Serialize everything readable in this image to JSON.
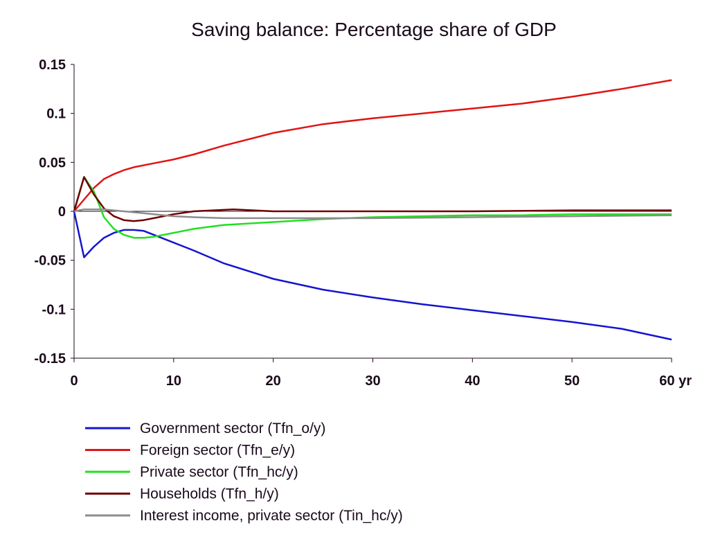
{
  "chart_data": {
    "type": "line",
    "title": "Saving balance: Percentage share of GDP",
    "xlabel": "",
    "ylabel": "",
    "xlim": [
      0,
      60
    ],
    "ylim": [
      -0.15,
      0.15
    ],
    "x_ticks": [
      0,
      10,
      20,
      30,
      40,
      50,
      60
    ],
    "x_tick_labels": [
      "0",
      "10",
      "20",
      "30",
      "40",
      "50",
      "60 yr"
    ],
    "y_ticks": [
      0.15,
      0.1,
      0.05,
      0,
      -0.05,
      -0.1,
      -0.15
    ],
    "y_tick_labels": [
      "0.15",
      "0.1",
      "0.05",
      "0",
      "-0.05",
      "-0.1",
      "-0.15"
    ],
    "grid": false,
    "zero_line": true,
    "legend_position": "bottom",
    "series": [
      {
        "name": "Government sector (Tfn_o/y)",
        "color": "#1414d2",
        "x": [
          0,
          1,
          2,
          3,
          4,
          5,
          6,
          7,
          8,
          10,
          12,
          15,
          20,
          25,
          30,
          35,
          40,
          45,
          50,
          55,
          60
        ],
        "y": [
          0,
          -0.047,
          -0.036,
          -0.027,
          -0.022,
          -0.019,
          -0.019,
          -0.02,
          -0.024,
          -0.032,
          -0.04,
          -0.053,
          -0.069,
          -0.08,
          -0.088,
          -0.095,
          -0.101,
          -0.107,
          -0.113,
          -0.12,
          -0.131
        ]
      },
      {
        "name": "Foreign sector (Tfn_e/y)",
        "color": "#e01414",
        "x": [
          0,
          1,
          2,
          3,
          4,
          5,
          6,
          8,
          10,
          12,
          15,
          20,
          25,
          30,
          35,
          40,
          45,
          50,
          55,
          60
        ],
        "y": [
          0,
          0.012,
          0.024,
          0.033,
          0.038,
          0.042,
          0.045,
          0.049,
          0.053,
          0.058,
          0.067,
          0.08,
          0.089,
          0.095,
          0.1,
          0.105,
          0.11,
          0.117,
          0.125,
          0.134
        ]
      },
      {
        "name": "Private sector (Tfn_hc/y)",
        "color": "#20e020",
        "x": [
          0,
          1,
          2,
          3,
          4,
          5,
          6,
          7,
          8,
          10,
          12,
          15,
          20,
          25,
          30,
          35,
          40,
          45,
          50,
          55,
          60
        ],
        "y": [
          0,
          0.035,
          0.02,
          -0.006,
          -0.018,
          -0.024,
          -0.027,
          -0.027,
          -0.026,
          -0.022,
          -0.018,
          -0.014,
          -0.011,
          -0.008,
          -0.006,
          -0.005,
          -0.004,
          -0.004,
          -0.003,
          -0.003,
          -0.003
        ]
      },
      {
        "name": "Households (Tfn_h/y)",
        "color": "#6e0000",
        "x": [
          0,
          1,
          2,
          3,
          4,
          5,
          6,
          7,
          8,
          10,
          12,
          14,
          16,
          18,
          20,
          25,
          30,
          40,
          50,
          60
        ],
        "y": [
          0,
          0.035,
          0.017,
          0.003,
          -0.005,
          -0.009,
          -0.01,
          -0.009,
          -0.007,
          -0.003,
          0.0,
          0.001,
          0.002,
          0.001,
          0.0,
          0.0,
          0.0,
          0.0,
          0.001,
          0.001
        ]
      },
      {
        "name": "Interest income, private sector (Tin_hc/y)",
        "color": "#8c8c8c",
        "x": [
          0,
          1,
          2,
          3,
          4,
          5,
          6,
          7,
          8,
          10,
          12,
          15,
          20,
          30,
          40,
          50,
          60
        ],
        "y": [
          0,
          0.002,
          0.002,
          0.002,
          0.001,
          0.0,
          -0.001,
          -0.002,
          -0.003,
          -0.005,
          -0.006,
          -0.007,
          -0.007,
          -0.007,
          -0.006,
          -0.005,
          -0.004
        ]
      }
    ]
  }
}
